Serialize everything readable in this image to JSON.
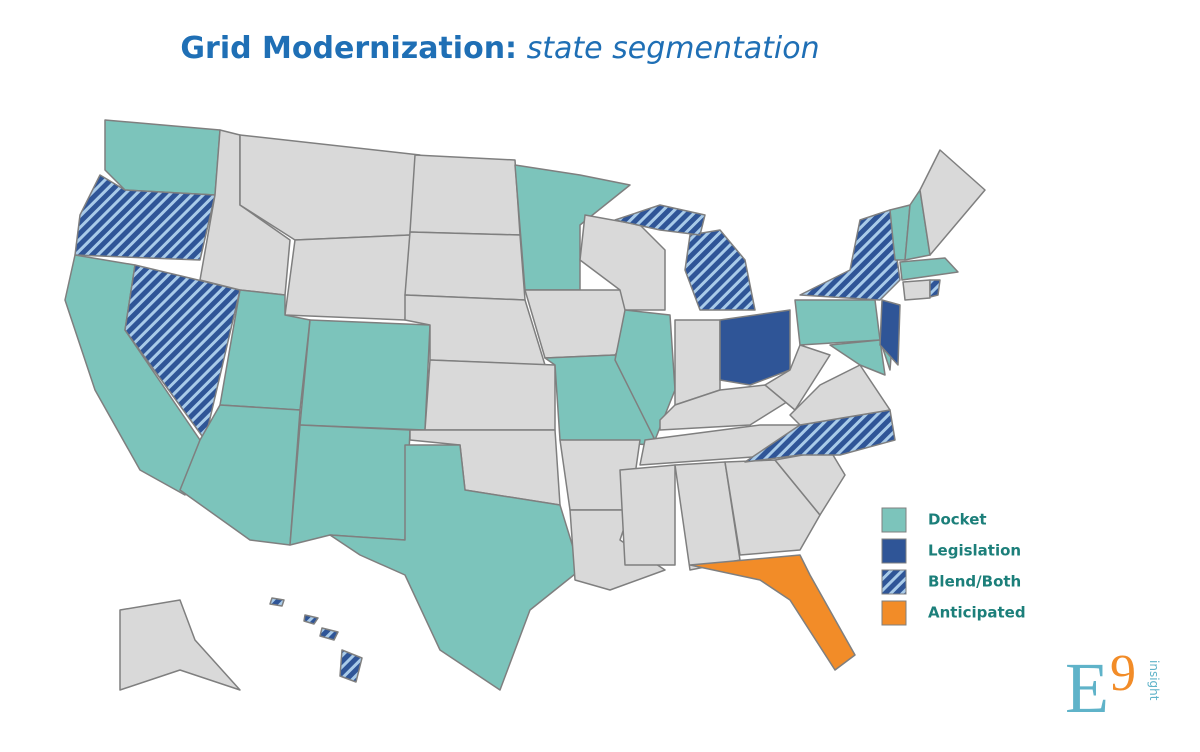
{
  "title": {
    "main": "Grid Modernization:",
    "sub": "state segmentation"
  },
  "legend": [
    {
      "label": "Docket",
      "color": "#7cc4bb",
      "hatched": false
    },
    {
      "label": "Legislation",
      "color": "#2f5597",
      "hatched": false
    },
    {
      "label": "Blend/Both",
      "color": "#2f5597",
      "hatched": true
    },
    {
      "label": "Anticipated",
      "color": "#f28c28",
      "hatched": false
    }
  ],
  "logo": {
    "mark": "E",
    "number": "9",
    "tagline": "insight"
  }
}
